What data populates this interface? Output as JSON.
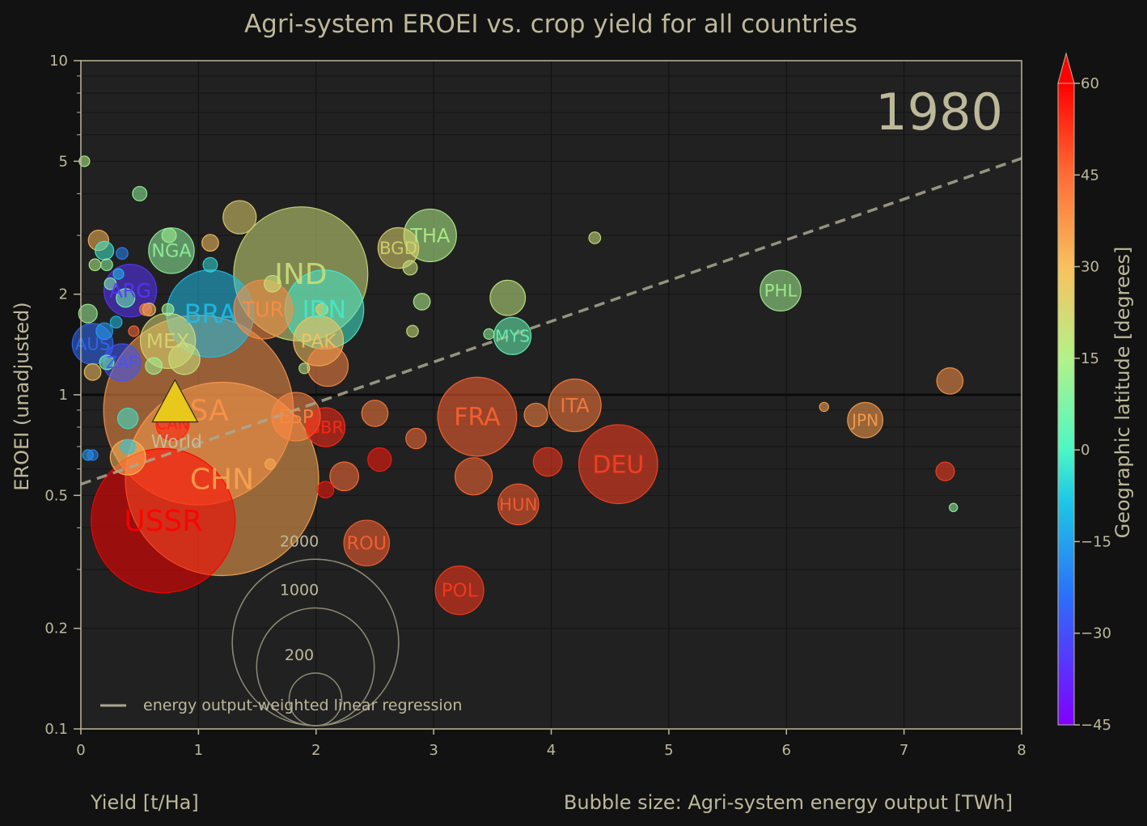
{
  "chart_data": {
    "type": "scatter",
    "title": "Agri-system EROEI vs. crop yield for all countries",
    "year_label": "1980",
    "xlabel": "Yield [t/Ha]",
    "ylabel": "EROEI (unadjusted)",
    "size_label": "Bubble size: Agri-system energy output [TWh]",
    "colorbar_label": "Geographic latitude [degrees]",
    "legend_label": "energy output-weighted linear regression",
    "legend_position": "lower-left",
    "x_scale": "linear",
    "y_scale": "log",
    "xlim": [
      0,
      8
    ],
    "ylim": [
      0.1,
      10
    ],
    "x_ticks": [
      "0",
      "1",
      "2",
      "3",
      "4",
      "5",
      "6",
      "7",
      "8"
    ],
    "y_ticks": [
      {
        "v": 0.1,
        "label": "0.1"
      },
      {
        "v": 0.2,
        "label": "0.2"
      },
      {
        "v": 0.5,
        "label": "0.5"
      },
      {
        "v": 1,
        "label": "1"
      },
      {
        "v": 2,
        "label": "2"
      },
      {
        "v": 5,
        "label": "5"
      },
      {
        "v": 10,
        "label": "10"
      }
    ],
    "colorbar_ticks": [
      "60",
      "45",
      "30",
      "15",
      "0",
      "−15",
      "−30",
      "−45"
    ],
    "colorbar_range": [
      -45,
      60
    ],
    "size_reference": [
      {
        "twh": 2000,
        "label": "2000"
      },
      {
        "twh": 1000,
        "label": "1000"
      },
      {
        "twh": 200,
        "label": "200"
      }
    ],
    "regression": {
      "x0": 0,
      "y0": 0.54,
      "x1": 8,
      "y1": 5.1
    },
    "world": {
      "label": "World",
      "x": 0.8,
      "y": 0.97
    },
    "points": [
      {
        "label": "USSR",
        "x": 0.7,
        "y": 0.42,
        "size": 1500,
        "lat": 60
      },
      {
        "label": "CHN",
        "x": 1.2,
        "y": 0.56,
        "size": 2700,
        "lat": 35
      },
      {
        "label": "USA",
        "x": 1.0,
        "y": 0.9,
        "size": 2600,
        "lat": 38
      },
      {
        "label": "IND",
        "x": 1.87,
        "y": 2.3,
        "size": 1300,
        "lat": 21
      },
      {
        "label": "CAN",
        "x": 0.78,
        "y": 0.82,
        "size": 80,
        "lat": 56
      },
      {
        "label": "BRA",
        "x": 1.1,
        "y": 1.75,
        "size": 550,
        "lat": -10
      },
      {
        "label": "IDN",
        "x": 2.07,
        "y": 1.8,
        "size": 450,
        "lat": -2
      },
      {
        "label": "TUR",
        "x": 1.55,
        "y": 1.8,
        "size": 250,
        "lat": 39
      },
      {
        "label": "FRA",
        "x": 3.37,
        "y": 0.86,
        "size": 450,
        "lat": 46
      },
      {
        "label": "DEU",
        "x": 4.57,
        "y": 0.62,
        "size": 450,
        "lat": 51
      },
      {
        "label": "ITA",
        "x": 4.2,
        "y": 0.93,
        "size": 200,
        "lat": 42
      },
      {
        "label": "JPN",
        "x": 6.67,
        "y": 0.84,
        "size": 90,
        "lat": 36
      },
      {
        "label": "PHL",
        "x": 5.95,
        "y": 2.05,
        "size": 120,
        "lat": 13
      },
      {
        "label": "MYS",
        "x": 3.67,
        "y": 1.5,
        "size": 100,
        "lat": 4
      },
      {
        "label": "THA",
        "x": 2.97,
        "y": 3.0,
        "size": 200,
        "lat": 15
      },
      {
        "label": "BGD",
        "x": 2.7,
        "y": 2.75,
        "size": 120,
        "lat": 24
      },
      {
        "label": "NGA",
        "x": 0.77,
        "y": 2.7,
        "size": 150,
        "lat": 10
      },
      {
        "label": "ARG",
        "x": 0.42,
        "y": 2.05,
        "size": 200,
        "lat": -35
      },
      {
        "label": "MEX",
        "x": 0.74,
        "y": 1.45,
        "size": 220,
        "lat": 23
      },
      {
        "label": "PAK",
        "x": 2.02,
        "y": 1.45,
        "size": 180,
        "lat": 30
      },
      {
        "label": "AUS",
        "x": 0.1,
        "y": 1.42,
        "size": 120,
        "lat": -25
      },
      {
        "label": "ZAF",
        "x": 0.35,
        "y": 1.25,
        "size": 100,
        "lat": -29
      },
      {
        "label": "ESP",
        "x": 1.83,
        "y": 0.86,
        "size": 170,
        "lat": 40
      },
      {
        "label": "GBR",
        "x": 2.08,
        "y": 0.8,
        "size": 110,
        "lat": 54
      },
      {
        "label": "HUN",
        "x": 3.72,
        "y": 0.47,
        "size": 120,
        "lat": 47
      },
      {
        "label": "ROU",
        "x": 2.43,
        "y": 0.36,
        "size": 150,
        "lat": 46
      },
      {
        "label": "POL",
        "x": 3.22,
        "y": 0.26,
        "size": 170,
        "lat": 52
      },
      {
        "label": "",
        "x": 1.35,
        "y": 3.4,
        "size": 80,
        "lat": 25
      },
      {
        "label": "",
        "x": 3.63,
        "y": 1.95,
        "size": 90,
        "lat": 18
      },
      {
        "label": "",
        "x": 2.1,
        "y": 1.22,
        "size": 120,
        "lat": 40
      },
      {
        "label": "",
        "x": 2.5,
        "y": 0.88,
        "size": 50,
        "lat": 42
      },
      {
        "label": "",
        "x": 3.87,
        "y": 0.87,
        "size": 40,
        "lat": 40
      },
      {
        "label": "",
        "x": 3.97,
        "y": 0.63,
        "size": 60,
        "lat": 52
      },
      {
        "label": "",
        "x": 3.34,
        "y": 0.57,
        "size": 100,
        "lat": 45
      },
      {
        "label": "",
        "x": 2.24,
        "y": 0.57,
        "size": 60,
        "lat": 44
      },
      {
        "label": "",
        "x": 2.54,
        "y": 0.64,
        "size": 40,
        "lat": 56
      },
      {
        "label": "",
        "x": 2.08,
        "y": 0.52,
        "size": 20,
        "lat": 57
      },
      {
        "label": "",
        "x": 2.85,
        "y": 0.74,
        "size": 30,
        "lat": 44
      },
      {
        "label": "",
        "x": 7.39,
        "y": 1.1,
        "size": 50,
        "lat": 38
      },
      {
        "label": "",
        "x": 7.35,
        "y": 0.59,
        "size": 25,
        "lat": 51
      },
      {
        "label": "",
        "x": 0.4,
        "y": 0.65,
        "size": 90,
        "lat": 32
      },
      {
        "label": "",
        "x": 0.88,
        "y": 1.28,
        "size": 70,
        "lat": 20
      },
      {
        "label": "",
        "x": 0.5,
        "y": 4.0,
        "size": 15,
        "lat": 10
      },
      {
        "label": "",
        "x": 0.75,
        "y": 3.0,
        "size": 15,
        "lat": 12
      },
      {
        "label": "",
        "x": 1.1,
        "y": 2.85,
        "size": 20,
        "lat": 30
      },
      {
        "label": "",
        "x": 0.4,
        "y": 0.85,
        "size": 30,
        "lat": -3
      },
      {
        "label": "",
        "x": 0.4,
        "y": 0.7,
        "size": 15,
        "lat": -8
      },
      {
        "label": "",
        "x": 0.55,
        "y": 1.8,
        "size": 10,
        "lat": 40
      },
      {
        "label": "",
        "x": 0.2,
        "y": 2.7,
        "size": 25,
        "lat": -2
      },
      {
        "label": "",
        "x": 0.15,
        "y": 2.9,
        "size": 30,
        "lat": 32
      },
      {
        "label": "",
        "x": 0.06,
        "y": 1.75,
        "size": 25,
        "lat": 12
      },
      {
        "label": "",
        "x": 0.1,
        "y": 1.17,
        "size": 20,
        "lat": 30
      },
      {
        "label": "",
        "x": 0.22,
        "y": 1.25,
        "size": 15,
        "lat": 6
      },
      {
        "label": "",
        "x": 0.2,
        "y": 1.55,
        "size": 20,
        "lat": -15
      },
      {
        "label": "",
        "x": 0.38,
        "y": 1.95,
        "size": 25,
        "lat": 5
      },
      {
        "label": "",
        "x": 0.62,
        "y": 1.22,
        "size": 20,
        "lat": 12
      },
      {
        "label": "",
        "x": 0.74,
        "y": 1.8,
        "size": 10,
        "lat": 14
      },
      {
        "label": "",
        "x": 1.1,
        "y": 2.45,
        "size": 15,
        "lat": -5
      },
      {
        "label": "",
        "x": 1.63,
        "y": 2.15,
        "size": 20,
        "lat": 20
      },
      {
        "label": "",
        "x": 2.05,
        "y": 1.8,
        "size": 10,
        "lat": 25
      },
      {
        "label": "",
        "x": 2.8,
        "y": 2.4,
        "size": 15,
        "lat": 20
      },
      {
        "label": "",
        "x": 2.9,
        "y": 1.9,
        "size": 20,
        "lat": 15
      },
      {
        "label": "",
        "x": 2.82,
        "y": 1.55,
        "size": 10,
        "lat": 20
      },
      {
        "label": "",
        "x": 3.47,
        "y": 1.52,
        "size": 8,
        "lat": 10
      },
      {
        "label": "",
        "x": 4.37,
        "y": 2.95,
        "size": 10,
        "lat": 20
      },
      {
        "label": "",
        "x": 0.03,
        "y": 5.0,
        "size": 8,
        "lat": 15
      },
      {
        "label": "",
        "x": 1.9,
        "y": 1.2,
        "size": 8,
        "lat": 18
      },
      {
        "label": "",
        "x": 1.61,
        "y": 0.62,
        "size": 8,
        "lat": 34
      },
      {
        "label": "",
        "x": 6.32,
        "y": 0.92,
        "size": 6,
        "lat": 35
      },
      {
        "label": "",
        "x": 0.45,
        "y": 1.55,
        "size": 8,
        "lat": 45
      },
      {
        "label": "",
        "x": 0.06,
        "y": 0.66,
        "size": 8,
        "lat": -15
      },
      {
        "label": "",
        "x": 7.42,
        "y": 0.46,
        "size": 5,
        "lat": 10
      },
      {
        "label": "",
        "x": 0.12,
        "y": 2.45,
        "size": 10,
        "lat": 15
      },
      {
        "label": "",
        "x": 0.22,
        "y": 2.45,
        "size": 10,
        "lat": 10
      },
      {
        "label": "",
        "x": 0.25,
        "y": 2.15,
        "size": 10,
        "lat": 8
      },
      {
        "label": "",
        "x": 0.3,
        "y": 1.65,
        "size": 10,
        "lat": -10
      },
      {
        "label": "",
        "x": 0.1,
        "y": 0.66,
        "size": 8,
        "lat": -20
      },
      {
        "label": "",
        "x": 0.32,
        "y": 2.3,
        "size": 8,
        "lat": -10
      },
      {
        "label": "",
        "x": 0.35,
        "y": 2.65,
        "size": 10,
        "lat": -20
      },
      {
        "label": "",
        "x": 0.58,
        "y": 1.8,
        "size": 12,
        "lat": 30
      }
    ]
  }
}
